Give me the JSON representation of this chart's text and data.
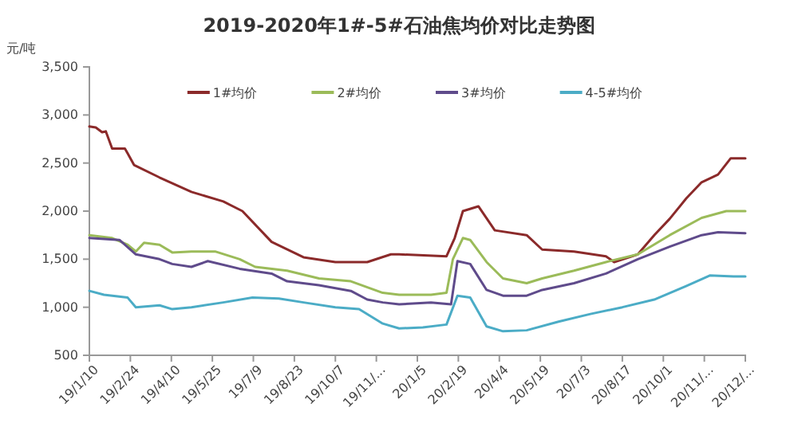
{
  "chart_data": {
    "type": "line",
    "title": "2019-2020年1#-5#石油焦均价对比走势图",
    "ylabel": "元/吨",
    "legend": "top",
    "grid": false,
    "marker": "none",
    "ylim": [
      500,
      3500
    ],
    "yticks": [
      {
        "value": 500,
        "label": "500"
      },
      {
        "value": 1000,
        "label": "1,000"
      },
      {
        "value": 1500,
        "label": "1,500"
      },
      {
        "value": 2000,
        "label": "2,000"
      },
      {
        "value": 2500,
        "label": "2,500"
      },
      {
        "value": 3000,
        "label": "3,000"
      },
      {
        "value": 3500,
        "label": "3,500"
      }
    ],
    "xlim": [
      "2019-01-10",
      "2020-12-30"
    ],
    "xticks": [
      {
        "value": "2019-01-10",
        "label": "19/1/10"
      },
      {
        "value": "2019-02-24",
        "label": "19/2/24"
      },
      {
        "value": "2019-04-10",
        "label": "19/4/10"
      },
      {
        "value": "2019-05-25",
        "label": "19/5/25"
      },
      {
        "value": "2019-07-09",
        "label": "19/7/9"
      },
      {
        "value": "2019-08-23",
        "label": "19/8/23"
      },
      {
        "value": "2019-10-07",
        "label": "19/10/7"
      },
      {
        "value": "2019-11-21",
        "label": "19/11/..."
      },
      {
        "value": "2020-01-05",
        "label": "20/1/5"
      },
      {
        "value": "2020-02-19",
        "label": "20/2/19"
      },
      {
        "value": "2020-04-04",
        "label": "20/4/4"
      },
      {
        "value": "2020-05-19",
        "label": "20/5/19"
      },
      {
        "value": "2020-07-03",
        "label": "20/7/3"
      },
      {
        "value": "2020-08-17",
        "label": "20/8/17"
      },
      {
        "value": "2020-10-01",
        "label": "20/10/1"
      },
      {
        "value": "2020-11-15",
        "label": "20/11/..."
      },
      {
        "value": "2020-12-30",
        "label": "20/12/..."
      }
    ],
    "series": [
      {
        "name": "1#均价",
        "color": "#8b2a2a",
        "x": [
          "2019-01-10",
          "2019-01-17",
          "2019-01-24",
          "2019-01-28",
          "2019-02-04",
          "2019-02-18",
          "2019-02-21",
          "2019-02-28",
          "2019-03-28",
          "2019-05-02",
          "2019-06-06",
          "2019-06-27",
          "2019-07-29",
          "2019-09-02",
          "2019-10-07",
          "2019-11-11",
          "2019-12-07",
          "2019-12-16",
          "2020-02-06",
          "2020-02-15",
          "2020-02-24",
          "2020-03-12",
          "2020-03-30",
          "2020-05-04",
          "2020-05-21",
          "2020-06-25",
          "2020-07-30",
          "2020-08-08",
          "2020-09-03",
          "2020-09-21",
          "2020-10-08",
          "2020-10-26",
          "2020-11-12",
          "2020-11-30",
          "2020-12-14",
          "2020-12-30"
        ],
        "values": [
          2880,
          2870,
          2820,
          2830,
          2650,
          2650,
          2600,
          2480,
          2350,
          2200,
          2100,
          2000,
          1680,
          1520,
          1470,
          1470,
          1550,
          1550,
          1530,
          1720,
          2000,
          2050,
          1800,
          1750,
          1600,
          1580,
          1530,
          1470,
          1550,
          1750,
          1920,
          2130,
          2300,
          2380,
          2550,
          2550
        ]
      },
      {
        "name": "2#均价",
        "color": "#9bbb59",
        "x": [
          "2019-01-10",
          "2019-02-04",
          "2019-02-21",
          "2019-03-02",
          "2019-03-11",
          "2019-03-28",
          "2019-04-11",
          "2019-05-02",
          "2019-05-28",
          "2019-06-24",
          "2019-07-11",
          "2019-08-15",
          "2019-09-19",
          "2019-10-24",
          "2019-11-28",
          "2019-12-16",
          "2020-01-20",
          "2020-02-06",
          "2020-02-13",
          "2020-02-24",
          "2020-03-03",
          "2020-03-21",
          "2020-04-08",
          "2020-05-04",
          "2020-05-21",
          "2020-06-25",
          "2020-07-30",
          "2020-09-03",
          "2020-10-08",
          "2020-11-12",
          "2020-12-09",
          "2020-12-30"
        ],
        "values": [
          1750,
          1720,
          1650,
          1580,
          1670,
          1650,
          1570,
          1580,
          1580,
          1500,
          1420,
          1380,
          1300,
          1270,
          1150,
          1130,
          1130,
          1150,
          1500,
          1720,
          1700,
          1470,
          1300,
          1250,
          1300,
          1380,
          1470,
          1550,
          1750,
          1930,
          2000,
          2000
        ]
      },
      {
        "name": "3#均价",
        "color": "#5f4b8b",
        "x": [
          "2019-01-10",
          "2019-02-12",
          "2019-03-02",
          "2019-03-28",
          "2019-04-11",
          "2019-05-02",
          "2019-05-20",
          "2019-06-24",
          "2019-07-29",
          "2019-08-15",
          "2019-09-19",
          "2019-10-24",
          "2019-11-11",
          "2019-11-28",
          "2019-12-16",
          "2020-01-20",
          "2020-02-11",
          "2020-02-18",
          "2020-03-03",
          "2020-03-21",
          "2020-04-08",
          "2020-05-04",
          "2020-05-21",
          "2020-06-25",
          "2020-07-30",
          "2020-09-03",
          "2020-10-08",
          "2020-11-12",
          "2020-11-30",
          "2020-12-30"
        ],
        "values": [
          1720,
          1700,
          1550,
          1500,
          1450,
          1420,
          1480,
          1400,
          1350,
          1270,
          1230,
          1170,
          1080,
          1050,
          1030,
          1050,
          1030,
          1480,
          1450,
          1180,
          1120,
          1120,
          1180,
          1250,
          1350,
          1500,
          1630,
          1750,
          1780,
          1770
        ]
      },
      {
        "name": "4-5#均价",
        "color": "#4bacc6",
        "x": [
          "2019-01-10",
          "2019-01-26",
          "2019-02-21",
          "2019-03-02",
          "2019-03-28",
          "2019-04-11",
          "2019-05-02",
          "2019-06-06",
          "2019-07-08",
          "2019-08-06",
          "2019-09-02",
          "2019-10-07",
          "2019-11-02",
          "2019-11-28",
          "2019-12-16",
          "2020-01-11",
          "2020-02-06",
          "2020-02-18",
          "2020-03-03",
          "2020-03-21",
          "2020-04-08",
          "2020-05-04",
          "2020-06-08",
          "2020-07-13",
          "2020-08-17",
          "2020-09-21",
          "2020-10-26",
          "2020-11-21",
          "2020-12-17",
          "2020-12-30"
        ],
        "values": [
          1170,
          1130,
          1100,
          1000,
          1020,
          980,
          1000,
          1050,
          1100,
          1090,
          1050,
          1000,
          980,
          830,
          780,
          790,
          820,
          1120,
          1100,
          800,
          750,
          760,
          850,
          930,
          1000,
          1080,
          1220,
          1330,
          1320,
          1320
        ]
      }
    ]
  }
}
